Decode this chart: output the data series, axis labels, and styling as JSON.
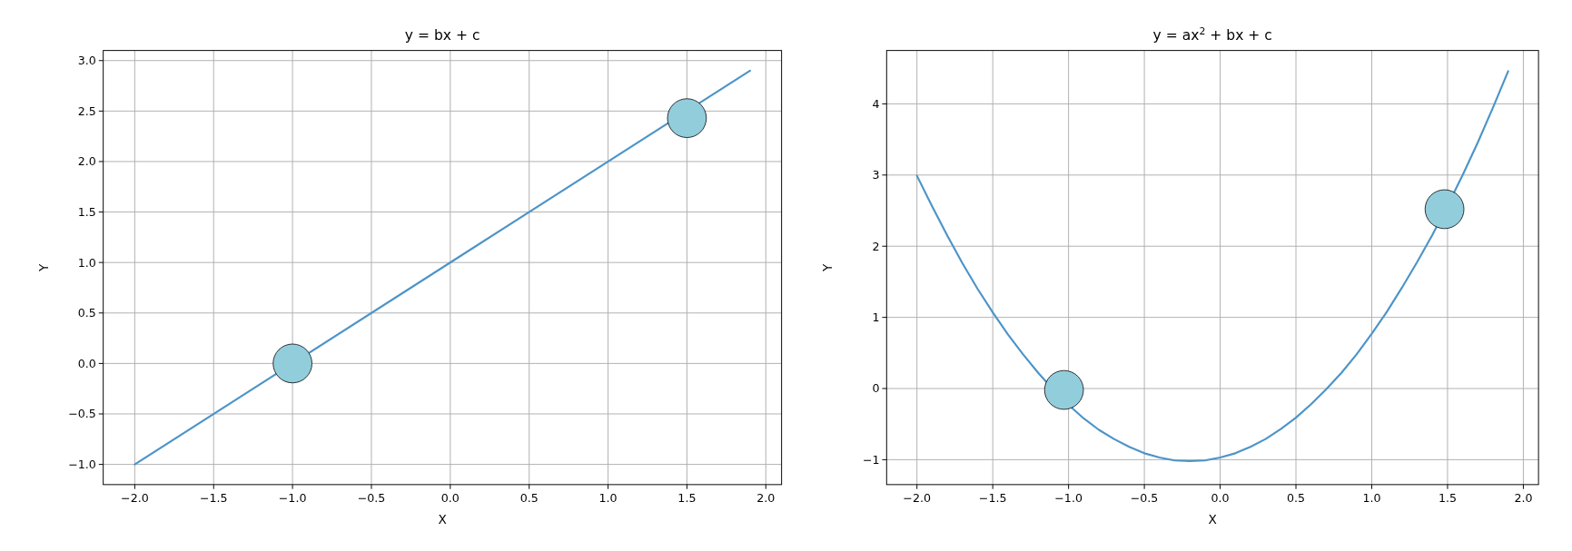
{
  "chart_data": [
    {
      "type": "line",
      "title": "y = bx + c",
      "xlabel": "X",
      "ylabel": "Y",
      "xlim": [
        -2.2,
        2.1
      ],
      "ylim": [
        -1.2,
        3.1
      ],
      "xticks": [
        {
          "value": -2,
          "label": "−2.0"
        },
        {
          "value": -1.5,
          "label": "−1.5"
        },
        {
          "value": -1,
          "label": "−1.0"
        },
        {
          "value": -0.5,
          "label": "−0.5"
        },
        {
          "value": 0,
          "label": "0.0"
        },
        {
          "value": 0.5,
          "label": "0.5"
        },
        {
          "value": 1,
          "label": "1.0"
        },
        {
          "value": 1.5,
          "label": "1.5"
        },
        {
          "value": 2,
          "label": "2.0"
        }
      ],
      "yticks": [
        {
          "value": -1,
          "label": "−1.0"
        },
        {
          "value": -0.5,
          "label": "−0.5"
        },
        {
          "value": 0,
          "label": "0.0"
        },
        {
          "value": 0.5,
          "label": "0.5"
        },
        {
          "value": 1,
          "label": "1.0"
        },
        {
          "value": 1.5,
          "label": "1.5"
        },
        {
          "value": 2,
          "label": "2.0"
        },
        {
          "value": 2.5,
          "label": "2.5"
        },
        {
          "value": 3,
          "label": "3.0"
        }
      ],
      "grid": true,
      "series": [
        {
          "type": "line",
          "color": "#4c94c8",
          "x": [
            -2.0,
            1.9
          ],
          "values": [
            -1.0,
            2.9
          ]
        },
        {
          "type": "scatter",
          "color": "#92cddc",
          "marker": "circle",
          "x": [
            -1.0,
            1.5
          ],
          "values": [
            0.0,
            2.43
          ]
        }
      ]
    },
    {
      "type": "line",
      "title": "y = ax$^{2}$ + bx + c",
      "xlabel": "X",
      "ylabel": "Y",
      "xlim": [
        -2.2,
        2.1
      ],
      "ylim": [
        -1.35,
        4.75
      ],
      "xticks": [
        {
          "value": -2,
          "label": "−2.0"
        },
        {
          "value": -1.5,
          "label": "−1.5"
        },
        {
          "value": -1,
          "label": "−1.0"
        },
        {
          "value": -0.5,
          "label": "−0.5"
        },
        {
          "value": 0,
          "label": "0.0"
        },
        {
          "value": 0.5,
          "label": "0.5"
        },
        {
          "value": 1,
          "label": "1.0"
        },
        {
          "value": 1.5,
          "label": "1.5"
        },
        {
          "value": 2,
          "label": "2.0"
        }
      ],
      "yticks": [
        -1,
        0,
        1,
        2,
        3,
        4
      ],
      "grid": true,
      "series": [
        {
          "type": "line",
          "color": "#4c94c8",
          "x": [
            -2.0,
            -1.9,
            -1.8,
            -1.7,
            -1.6,
            -1.5,
            -1.4,
            -1.3,
            -1.2,
            -1.1,
            -1.0,
            -0.9,
            -0.8,
            -0.7,
            -0.6,
            -0.5,
            -0.4,
            -0.3,
            -0.2,
            -0.1,
            0.0,
            0.1,
            0.2,
            0.3,
            0.4,
            0.5,
            0.6,
            0.7,
            0.8,
            0.9,
            1.0,
            1.1,
            1.2,
            1.3,
            1.4,
            1.5,
            1.6,
            1.7,
            1.8,
            1.9
          ],
          "values": [
            2.99,
            2.56,
            2.15,
            1.76,
            1.4,
            1.07,
            0.76,
            0.48,
            0.22,
            -0.02,
            -0.23,
            -0.42,
            -0.58,
            -0.71,
            -0.82,
            -0.91,
            -0.97,
            -1.01,
            -1.02,
            -1.01,
            -0.97,
            -0.91,
            -0.82,
            -0.71,
            -0.57,
            -0.41,
            -0.22,
            -0.01,
            0.22,
            0.48,
            0.77,
            1.08,
            1.42,
            1.78,
            2.16,
            2.57,
            3.0,
            3.46,
            3.95,
            4.46
          ]
        },
        {
          "type": "scatter",
          "color": "#92cddc",
          "marker": "circle",
          "x": [
            -1.03,
            1.48
          ],
          "values": [
            -0.02,
            2.52
          ]
        }
      ]
    }
  ]
}
